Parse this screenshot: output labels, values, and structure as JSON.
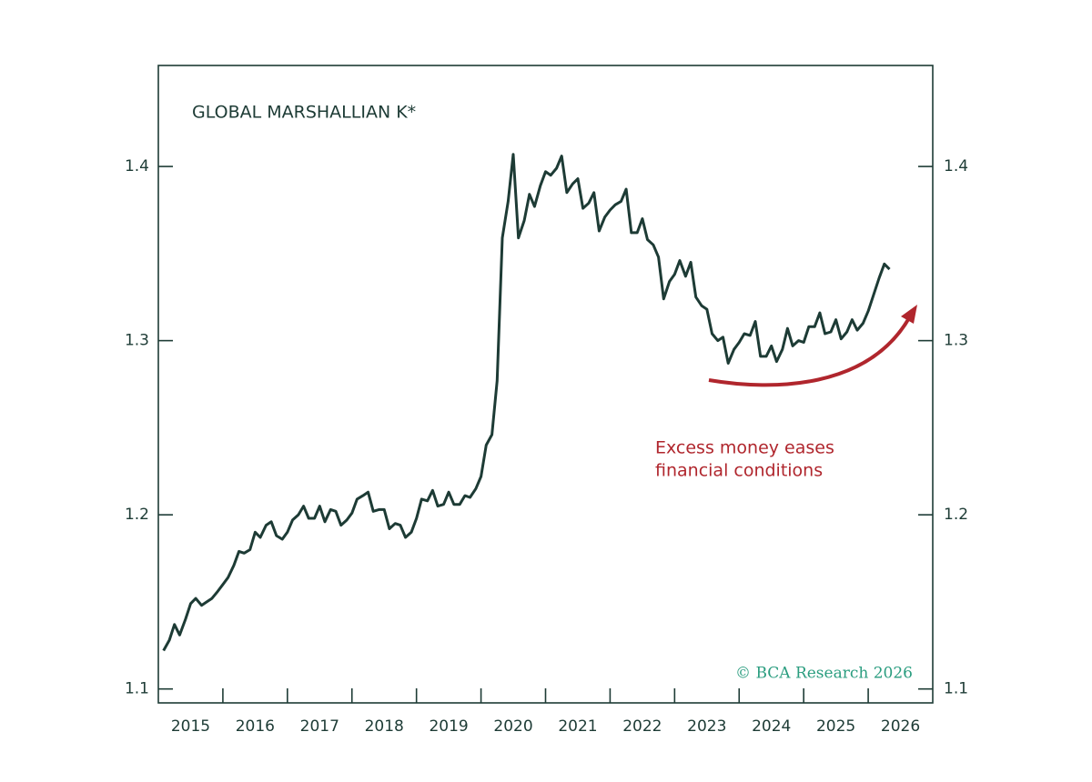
{
  "chart_data": {
    "type": "line",
    "title": "GLOBAL MARSHALLIAN K*",
    "annotation": [
      "Excess money eases",
      "financial conditions"
    ],
    "source": "© BCA Research 2026",
    "xlim": [
      2015,
      2027
    ],
    "xticks": [
      {
        "value": 2015.5,
        "label": "2015"
      },
      {
        "value": 2016.5,
        "label": "2016"
      },
      {
        "value": 2017.5,
        "label": "2017"
      },
      {
        "value": 2018.5,
        "label": "2018"
      },
      {
        "value": 2019.5,
        "label": "2019"
      },
      {
        "value": 2020.5,
        "label": "2020"
      },
      {
        "value": 2021.5,
        "label": "2021"
      },
      {
        "value": 2022.5,
        "label": "2022"
      },
      {
        "value": 2023.5,
        "label": "2023"
      },
      {
        "value": 2024.5,
        "label": "2024"
      },
      {
        "value": 2025.5,
        "label": "2025"
      },
      {
        "value": 2026.5,
        "label": "2026"
      }
    ],
    "xtick_marks": [
      2016,
      2017,
      2018,
      2019,
      2020,
      2021,
      2022,
      2023,
      2024,
      2025,
      2026
    ],
    "ylim": [
      1.092,
      1.458
    ],
    "yticks": [
      1.1,
      1.2,
      1.3,
      1.4
    ],
    "grid": false,
    "color": "#1d3b35",
    "annotation_color": "#b0262d",
    "source_color": "#2a9d7f",
    "x": [
      2015.08,
      2015.17,
      2015.25,
      2015.33,
      2015.42,
      2015.5,
      2015.58,
      2015.67,
      2015.75,
      2015.83,
      2015.92,
      2016.0,
      2016.08,
      2016.17,
      2016.25,
      2016.33,
      2016.42,
      2016.5,
      2016.58,
      2016.67,
      2016.75,
      2016.83,
      2016.92,
      2017.0,
      2017.08,
      2017.17,
      2017.25,
      2017.33,
      2017.42,
      2017.5,
      2017.58,
      2017.67,
      2017.75,
      2017.83,
      2017.92,
      2018.0,
      2018.08,
      2018.17,
      2018.25,
      2018.33,
      2018.42,
      2018.5,
      2018.58,
      2018.67,
      2018.75,
      2018.83,
      2018.92,
      2019.0,
      2019.08,
      2019.17,
      2019.25,
      2019.33,
      2019.42,
      2019.5,
      2019.58,
      2019.67,
      2019.75,
      2019.83,
      2019.92,
      2020.0,
      2020.08,
      2020.17,
      2020.25,
      2020.33,
      2020.42,
      2020.5,
      2020.58,
      2020.67,
      2020.75,
      2020.83,
      2020.92,
      2021.0,
      2021.08,
      2021.17,
      2021.25,
      2021.33,
      2021.42,
      2021.5,
      2021.58,
      2021.67,
      2021.75,
      2021.83,
      2021.92,
      2022.0,
      2022.08,
      2022.17,
      2022.25,
      2022.33,
      2022.42,
      2022.5,
      2022.58,
      2022.67,
      2022.75,
      2022.83,
      2022.92,
      2023.0,
      2023.08,
      2023.17,
      2023.25,
      2023.33,
      2023.42,
      2023.5,
      2023.58,
      2023.67,
      2023.75,
      2023.83,
      2023.92,
      2024.0,
      2024.08,
      2024.17,
      2024.25,
      2024.33,
      2024.42,
      2024.5,
      2024.58,
      2024.67,
      2024.75,
      2024.83,
      2024.92,
      2025.0,
      2025.08,
      2025.17,
      2025.25,
      2025.33,
      2025.42,
      2025.5,
      2025.58,
      2025.67,
      2025.75,
      2025.83,
      2025.92,
      2026.0,
      2026.08,
      2026.17,
      2026.25,
      2026.33
    ],
    "values": [
      1.122,
      1.128,
      1.137,
      1.131,
      1.14,
      1.149,
      1.152,
      1.148,
      1.15,
      1.152,
      1.156,
      1.16,
      1.164,
      1.171,
      1.179,
      1.178,
      1.18,
      1.19,
      1.187,
      1.194,
      1.196,
      1.188,
      1.186,
      1.19,
      1.197,
      1.2,
      1.205,
      1.198,
      1.198,
      1.205,
      1.196,
      1.203,
      1.202,
      1.194,
      1.197,
      1.201,
      1.209,
      1.211,
      1.213,
      1.202,
      1.203,
      1.203,
      1.192,
      1.195,
      1.194,
      1.187,
      1.19,
      1.198,
      1.209,
      1.208,
      1.214,
      1.205,
      1.206,
      1.213,
      1.206,
      1.206,
      1.211,
      1.21,
      1.215,
      1.222,
      1.24,
      1.246,
      1.277,
      1.359,
      1.38,
      1.407,
      1.359,
      1.369,
      1.384,
      1.377,
      1.389,
      1.397,
      1.395,
      1.399,
      1.406,
      1.385,
      1.39,
      1.393,
      1.376,
      1.379,
      1.385,
      1.363,
      1.371,
      1.375,
      1.378,
      1.38,
      1.387,
      1.362,
      1.362,
      1.37,
      1.358,
      1.355,
      1.348,
      1.324,
      1.334,
      1.338,
      1.346,
      1.337,
      1.345,
      1.325,
      1.32,
      1.318,
      1.304,
      1.3,
      1.302,
      1.287,
      1.295,
      1.299,
      1.304,
      1.303,
      1.311,
      1.291,
      1.291,
      1.297,
      1.288,
      1.295,
      1.307,
      1.297,
      1.3,
      1.299,
      1.308,
      1.308,
      1.316,
      1.304,
      1.305,
      1.312,
      1.301,
      1.305,
      1.312,
      1.306,
      1.31,
      1.317,
      1.326,
      1.336,
      1.344,
      1.341
    ]
  }
}
